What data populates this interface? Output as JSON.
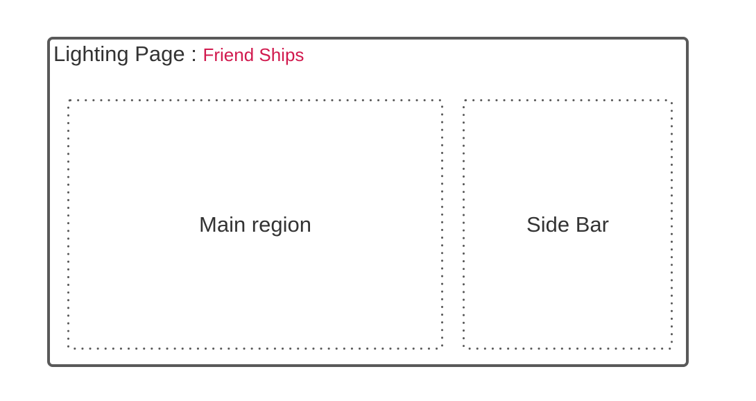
{
  "page": {
    "title_prefix": "Lighting Page",
    "title_separator": " : ",
    "title_highlight": "Friend Ships"
  },
  "regions": {
    "main": {
      "label": "Main region"
    },
    "sidebar": {
      "label": "Side Bar"
    }
  },
  "colors": {
    "frame_border": "#595959",
    "text": "#333333",
    "highlight": "#d11a4e",
    "dotted_border": "#595959"
  }
}
